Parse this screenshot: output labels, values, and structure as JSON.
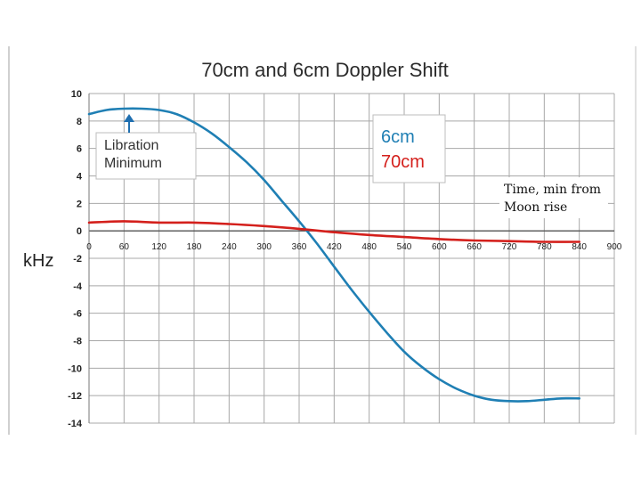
{
  "chart_data": {
    "type": "line",
    "title": "70cm and 6cm Doppler Shift",
    "ylabel": "kHz",
    "xlabel_lines": [
      "Time, min from",
      "Moon rise"
    ],
    "xlim": [
      0,
      900
    ],
    "ylim": [
      -14,
      10
    ],
    "xticks": [
      0,
      60,
      120,
      180,
      240,
      300,
      360,
      420,
      480,
      540,
      600,
      660,
      720,
      780,
      840,
      900
    ],
    "xtick_labels": [
      "0",
      "60",
      "120",
      "180",
      "240",
      "300",
      "360",
      "420",
      "480",
      "540",
      "600",
      "660",
      "720",
      "780",
      "840",
      "900"
    ],
    "yticks": [
      10,
      8,
      6,
      4,
      2,
      0,
      -2,
      -4,
      -6,
      -8,
      -10,
      -12,
      -14
    ],
    "ytick_labels": [
      "10",
      "8",
      "6",
      "4",
      "2",
      "0",
      "-2",
      "-4",
      "-6",
      "-8",
      "-10",
      "-12",
      "-14"
    ],
    "grid": true,
    "series": [
      {
        "name": "6cm",
        "color": "#1f7fb4",
        "x": [
          0,
          30,
          60,
          90,
          120,
          150,
          180,
          210,
          240,
          270,
          300,
          330,
          360,
          390,
          420,
          450,
          480,
          510,
          540,
          570,
          600,
          630,
          660,
          690,
          720,
          750,
          780,
          810,
          840
        ],
        "y": [
          8.5,
          8.8,
          8.9,
          8.9,
          8.8,
          8.5,
          7.9,
          7.1,
          6.1,
          5.0,
          3.7,
          2.2,
          0.7,
          -0.9,
          -2.6,
          -4.3,
          -5.9,
          -7.4,
          -8.8,
          -9.9,
          -10.8,
          -11.5,
          -12.0,
          -12.3,
          -12.4,
          -12.4,
          -12.3,
          -12.2,
          -12.2
        ]
      },
      {
        "name": "70cm",
        "color": "#d4201c",
        "x": [
          0,
          60,
          120,
          180,
          240,
          300,
          360,
          420,
          480,
          540,
          600,
          660,
          720,
          780,
          840
        ],
        "y": [
          0.6,
          0.7,
          0.6,
          0.6,
          0.5,
          0.35,
          0.15,
          -0.1,
          -0.3,
          -0.45,
          -0.6,
          -0.7,
          -0.75,
          -0.8,
          -0.8
        ]
      }
    ],
    "annotation": {
      "text_lines": [
        "Libration",
        "Minimum"
      ],
      "target_x": 60,
      "target_y": 8.9
    },
    "legend": {
      "placement": "top-center",
      "entries": [
        "6cm",
        "70cm"
      ]
    }
  }
}
